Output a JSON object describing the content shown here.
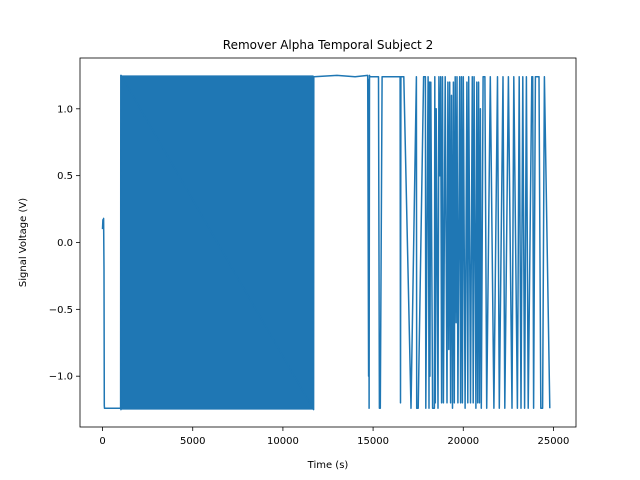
{
  "chart_data": {
    "type": "line",
    "title": "Remover Alpha Temporal Subject 2",
    "xlabel": "Time (s)",
    "ylabel": "Signal Voltage (V)",
    "xlim": [
      -1250,
      26250
    ],
    "ylim": [
      -1.38,
      1.38
    ],
    "xticks": [
      0,
      5000,
      10000,
      15000,
      20000,
      25000
    ],
    "xtick_labels": [
      "0",
      "5000",
      "10000",
      "15000",
      "20000",
      "25000"
    ],
    "yticks": [
      -1.0,
      -0.5,
      0.0,
      0.5,
      1.0
    ],
    "ytick_labels": [
      "−1.0",
      "−0.5",
      "0.0",
      "0.5",
      "1.0"
    ],
    "grid": false,
    "legend": "none",
    "color": "#1f77b4",
    "series": [
      {
        "x": [
          0,
          20,
          40,
          60,
          80,
          100,
          110,
          120,
          130,
          1000,
          1010,
          1020,
          1030,
          11700,
          11710,
          13000,
          14000,
          14700,
          14750,
          14760,
          14780,
          14800,
          14810,
          14900,
          15000,
          15200,
          15300,
          15350,
          15400,
          15500,
          15600,
          16000,
          16500,
          16520,
          16540,
          16700,
          17100,
          17400,
          17420,
          17500,
          17800,
          17900,
          17920,
          18050,
          18070,
          18100,
          18120,
          18150,
          18200,
          18300,
          18400,
          18420,
          18450,
          18500,
          18600,
          18650,
          18700,
          18750,
          18800,
          18850,
          18900,
          19000,
          19100,
          19150,
          19200,
          19250,
          19300,
          19350,
          19400,
          19450,
          19500,
          19550,
          19600,
          19650,
          19700,
          19800,
          19850,
          19900,
          19950,
          20000,
          20100,
          20200,
          20250,
          20300,
          20400,
          20500,
          20550,
          20600,
          20700,
          20750,
          20800,
          20850,
          20900,
          20950,
          21000,
          21100,
          21200,
          21300,
          21500,
          21700,
          21900,
          22000,
          22200,
          22300,
          22500,
          22700,
          22800,
          23000,
          23100,
          23200,
          23300,
          23400,
          23500,
          23600,
          23800,
          23850,
          23900,
          24000,
          24200,
          24300,
          24400,
          24500,
          24800
        ],
        "y": [
          0.1,
          0.17,
          0.12,
          0.18,
          -0.2,
          -1.22,
          -1.24,
          -1.24,
          -1.24,
          -1.24,
          1.25,
          -1.25,
          1.25,
          -1.25,
          1.24,
          1.25,
          1.24,
          1.25,
          -1.0,
          1.22,
          -1.24,
          1.25,
          1.24,
          1.24,
          1.24,
          1.24,
          1.24,
          -1.24,
          -1.24,
          1.24,
          1.24,
          1.24,
          1.24,
          -1.2,
          1.24,
          1.24,
          -1.24,
          1.24,
          -1.24,
          -1.24,
          1.24,
          1.24,
          -1.24,
          1.24,
          0.7,
          -1.24,
          1.2,
          -1.0,
          1.2,
          -1.24,
          -1.24,
          1.24,
          -1.2,
          1.0,
          -1.24,
          1.24,
          0.5,
          1.24,
          -1.2,
          1.24,
          -1.2,
          1.24,
          -1.2,
          1.2,
          -0.8,
          1.2,
          -1.2,
          1.1,
          -1.24,
          1.2,
          -1.2,
          1.24,
          -0.6,
          1.24,
          -1.2,
          1.24,
          -1.2,
          1.24,
          -1.2,
          1.24,
          -1.24,
          1.2,
          -1.2,
          1.24,
          -1.2,
          1.24,
          -1.2,
          1.24,
          -1.24,
          1.2,
          -1.2,
          1.2,
          -1.2,
          1.0,
          -1.24,
          1.24,
          1.24,
          -1.24,
          1.24,
          -1.24,
          1.24,
          -1.24,
          1.24,
          -1.24,
          1.24,
          -1.24,
          1.24,
          -1.24,
          1.24,
          -1.24,
          1.24,
          -1.24,
          1.24,
          -1.24,
          1.24,
          1.24,
          -1.24,
          1.24,
          1.24,
          -1.24,
          -1.24,
          1.24,
          -1.24
        ]
      }
    ]
  }
}
